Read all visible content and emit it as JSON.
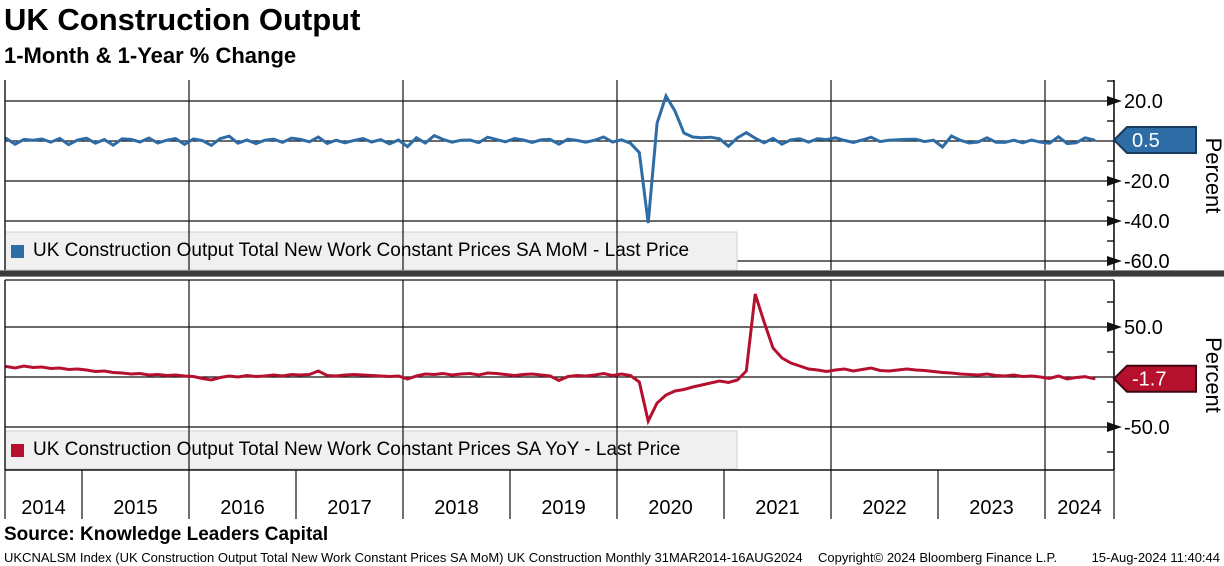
{
  "header": {
    "title": "UK Construction Output",
    "subtitle": "1-Month & 1-Year % Change"
  },
  "source_line": "Source: Knowledge Leaders Capital",
  "footer": {
    "left": "UKCNALSM Index (UK Construction Output Total New Work Constant Prices SA MoM) UK Construction  Monthly 31MAR2014-16AUG2024",
    "copyright": "Copyright© 2024 Bloomberg Finance L.P.",
    "timestamp": "15-Aug-2024 11:40:44"
  },
  "colors": {
    "mom_line": "#2E6CA6",
    "mom_tag_fill": "#2E6CA6",
    "mom_tag_border": "#173A5E",
    "yoy_line": "#B5112F",
    "yoy_tag_fill": "#B5112F",
    "yoy_tag_border": "#3E060F",
    "grid": "#111111",
    "legend_bg": "#F0F0F0",
    "legend_border": "#CFCFCF",
    "separator": "#3B3B3B"
  },
  "x_axis": {
    "year_labels": [
      "2014",
      "2015",
      "2016",
      "2017",
      "2018",
      "2019",
      "2020",
      "2021",
      "2022",
      "2023",
      "2024"
    ],
    "gridline_years": [
      2016,
      2018,
      2020,
      2022,
      2024
    ],
    "range": "31MAR2014-16AUG2024"
  },
  "chart_data": [
    {
      "type": "line",
      "panel": "top",
      "legend": "UK Construction Output Total New Work Constant Prices SA MoM - Last Price",
      "ylabel": "Percent",
      "ylim": [
        -65,
        30.5
      ],
      "ytick_values": [
        20,
        -20,
        -40,
        -60
      ],
      "ytick_labels": [
        "20.0",
        "-20.0",
        "-40.0",
        "-60.0"
      ],
      "gridline_values": [
        20,
        0,
        -20,
        -40,
        -60
      ],
      "minor_tick_values": [
        30,
        10,
        -10,
        -30,
        -50
      ],
      "last_price": 0.5,
      "last_price_label": "0.5",
      "start_year": 2014,
      "start_month": 4,
      "values": [
        1.3,
        -1.6,
        0.8,
        0.4,
        1.0,
        -0.6,
        1.3,
        -1.8,
        0.5,
        1.4,
        -1.1,
        0.7,
        -2.1,
        1.1,
        0.8,
        -0.5,
        1.5,
        -1.0,
        0.4,
        1.2,
        -1.7,
        1.0,
        0.2,
        -2.2,
        1.2,
        2.4,
        -1.1,
        0.5,
        -1.3,
        0.4,
        0.9,
        -0.7,
        1.4,
        0.8,
        -0.4,
        2.0,
        -1.2,
        0.4,
        -0.9,
        0.3,
        1.2,
        -0.5,
        0.7,
        -1.4,
        0.5,
        -2.8,
        1.6,
        -1.0,
        2.7,
        0.8,
        -0.6,
        0.4,
        0.5,
        -0.8,
        1.9,
        0.7,
        -0.4,
        1.2,
        0.5,
        -0.7,
        0.6,
        0.8,
        -1.6,
        0.9,
        0.3,
        -0.6,
        0.4,
        2.0,
        -0.5,
        0.6,
        -1.1,
        -5.8,
        -41.0,
        9.0,
        22.5,
        15.0,
        4.0,
        2.0,
        1.6,
        1.9,
        1.1,
        -2.6,
        1.6,
        4.2,
        1.4,
        -0.9,
        1.3,
        -1.6,
        0.6,
        1.1,
        -0.6,
        1.2,
        0.7,
        1.6,
        0.3,
        -0.7,
        0.5,
        1.9,
        -0.3,
        0.4,
        0.6,
        0.8,
        0.9,
        -0.3,
        0.4,
        -3.0,
        2.5,
        0.4,
        -1.0,
        -0.5,
        1.6,
        -0.6,
        -0.7,
        0.4,
        -0.9,
        0.5,
        -0.6,
        -1.1,
        2.1,
        -1.3,
        -0.9,
        1.6,
        0.5
      ]
    },
    {
      "type": "line",
      "panel": "bottom",
      "legend": "UK Construction Output Total New Work Constant Prices SA YoY - Last Price",
      "ylabel": "Percent",
      "ylim": [
        -93,
        97
      ],
      "ytick_values": [
        50,
        -50
      ],
      "ytick_labels": [
        "50.0",
        "-50.0"
      ],
      "gridline_values": [
        50,
        0,
        -50
      ],
      "minor_tick_values": [
        75,
        25,
        -25,
        -75
      ],
      "last_price": -1.7,
      "last_price_label": "-1.7",
      "start_year": 2014,
      "start_month": 4,
      "values": [
        10.5,
        9.0,
        11.0,
        9.5,
        10.0,
        8.5,
        9.0,
        7.5,
        8.0,
        7.0,
        5.5,
        6.0,
        4.5,
        4.0,
        3.0,
        3.5,
        2.0,
        2.5,
        1.5,
        2.0,
        1.0,
        0.5,
        -1.5,
        -3.0,
        -0.5,
        1.0,
        0.0,
        1.5,
        0.5,
        1.0,
        2.0,
        1.0,
        2.5,
        2.0,
        2.5,
        6.0,
        1.5,
        1.0,
        2.0,
        2.5,
        2.0,
        1.5,
        1.0,
        0.5,
        1.0,
        -2.0,
        1.0,
        3.0,
        2.5,
        3.5,
        2.0,
        3.0,
        3.5,
        2.0,
        4.0,
        3.5,
        2.5,
        1.5,
        2.5,
        3.0,
        2.0,
        1.0,
        -3.5,
        0.5,
        1.5,
        1.0,
        2.0,
        3.5,
        1.5,
        3.0,
        1.5,
        -5.0,
        -44.0,
        -26.0,
        -18.0,
        -14.0,
        -12.5,
        -10.0,
        -8.0,
        -6.0,
        -4.0,
        -5.5,
        -3.0,
        6.0,
        83.0,
        55.0,
        29.0,
        19.0,
        14.0,
        11.0,
        8.0,
        7.0,
        5.5,
        7.0,
        8.0,
        6.0,
        7.5,
        9.0,
        6.5,
        6.0,
        7.0,
        8.0,
        7.0,
        6.5,
        5.5,
        4.5,
        4.0,
        3.0,
        2.5,
        2.0,
        3.0,
        1.5,
        1.0,
        2.0,
        0.5,
        1.0,
        0.0,
        -1.5,
        1.0,
        -2.0,
        -0.5,
        0.3,
        -1.7
      ]
    }
  ]
}
